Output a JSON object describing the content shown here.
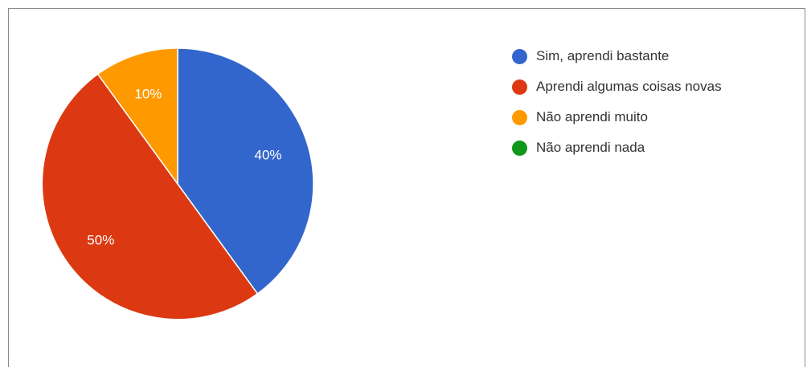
{
  "chart_data": {
    "type": "pie",
    "categories": [
      "Sim, aprendi bastante",
      "Aprendi algumas coisas novas",
      "Não aprendi muito",
      "Não aprendi nada"
    ],
    "values": [
      40,
      50,
      10,
      0
    ],
    "slice_labels": [
      "40%",
      "50%",
      "10%",
      ""
    ],
    "colors": [
      "#3366cc",
      "#dc3912",
      "#ff9900",
      "#109618"
    ],
    "legend_position": "right",
    "start_angle_deg": 90,
    "direction": "clockwise",
    "title": ""
  }
}
